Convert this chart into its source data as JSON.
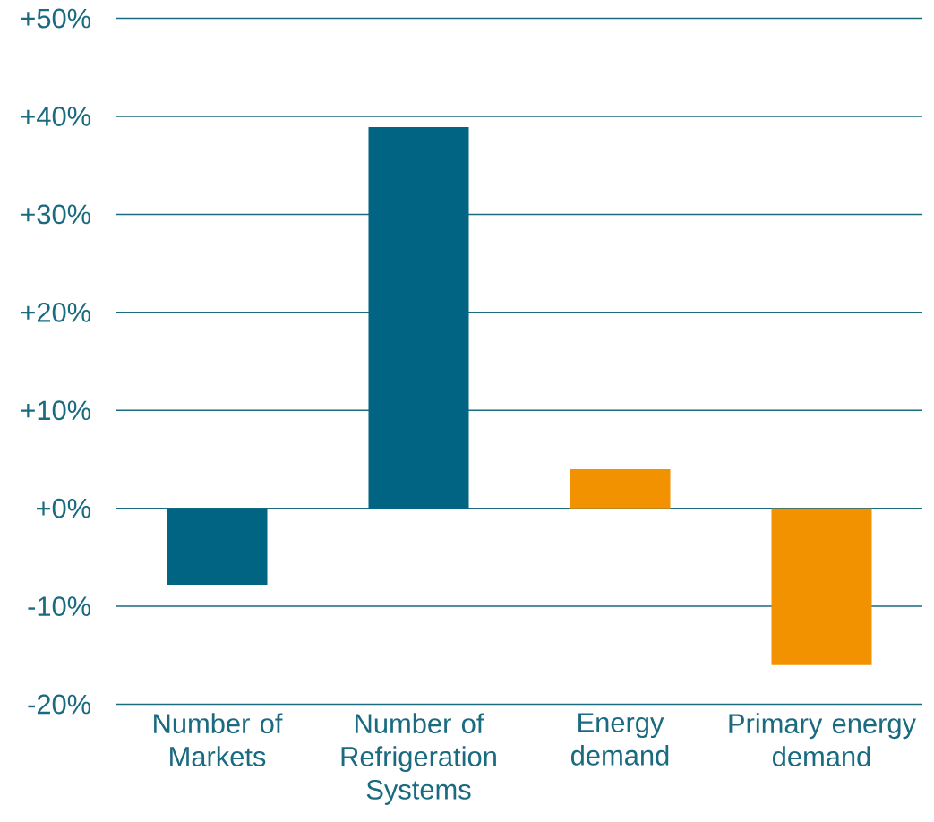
{
  "chart_data": {
    "type": "bar",
    "categories": [
      "Number of Markets",
      "Number of Refrigeration Systems",
      "Energy demand",
      "Primary energy demand"
    ],
    "values": [
      -7.8,
      38.9,
      4.0,
      -16.0
    ],
    "colors": [
      "#006482",
      "#006482",
      "#f39200",
      "#f39200"
    ],
    "ylim": [
      -20,
      50
    ],
    "yticks": [
      {
        "value": -20,
        "label": "-20%"
      },
      {
        "value": -10,
        "label": "-10%"
      },
      {
        "value": 0,
        "label": "+0%"
      },
      {
        "value": 10,
        "label": "+10%"
      },
      {
        "value": 20,
        "label": "+20%"
      },
      {
        "value": 30,
        "label": "+30%"
      },
      {
        "value": 40,
        "label": "+40%"
      },
      {
        "value": 50,
        "label": "+50%"
      }
    ],
    "grid": "y"
  }
}
